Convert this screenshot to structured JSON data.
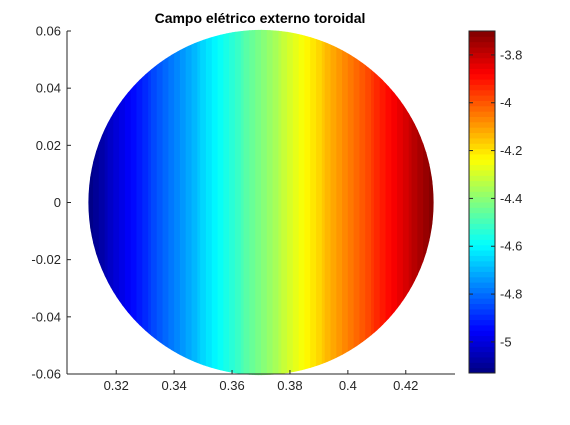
{
  "chart_data": {
    "type": "heatmap",
    "title": "Campo elétrico externo toroidal",
    "xlim": [
      0.303,
      0.437
    ],
    "ylim": [
      -0.06,
      0.06
    ],
    "x_ticks": [
      {
        "value": 0.32,
        "label": "0.32"
      },
      {
        "value": 0.34,
        "label": "0.34"
      },
      {
        "value": 0.36,
        "label": "0.36"
      },
      {
        "value": 0.38,
        "label": "0.38"
      },
      {
        "value": 0.4,
        "label": "0.4"
      },
      {
        "value": 0.42,
        "label": "0.42"
      }
    ],
    "y_ticks": [
      {
        "value": 0.06,
        "label": "0.06"
      },
      {
        "value": 0.04,
        "label": "0.04"
      },
      {
        "value": 0.02,
        "label": "0.02"
      },
      {
        "value": 0,
        "label": "0"
      },
      {
        "value": -0.02,
        "label": "-0.02"
      },
      {
        "value": -0.04,
        "label": "-0.04"
      },
      {
        "value": -0.06,
        "label": "-0.06"
      }
    ],
    "disk": {
      "center_x": 0.37,
      "center_y": 0,
      "radius": 0.06
    },
    "field": {
      "varies_along": "x",
      "x_min": 0.31,
      "x_max": 0.43,
      "value_at_x_min": -5.13,
      "value_at_x_max": -3.7
    },
    "colormap": "jet",
    "colormap_levels": 64,
    "clim": [
      -5.13,
      -3.7
    ],
    "colorbar_ticks": [
      {
        "value": -3.8,
        "label": "-3.8"
      },
      {
        "value": -4,
        "label": "-4"
      },
      {
        "value": -4.2,
        "label": "-4.2"
      },
      {
        "value": -4.4,
        "label": "-4.4"
      },
      {
        "value": -4.6,
        "label": "-4.6"
      },
      {
        "value": -4.8,
        "label": "-4.8"
      },
      {
        "value": -5,
        "label": "-5"
      }
    ],
    "grid": false
  }
}
